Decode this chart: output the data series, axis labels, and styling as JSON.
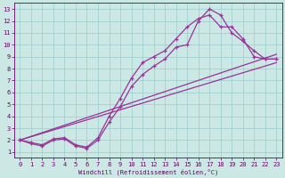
{
  "xlabel": "Windchill (Refroidissement éolien,°C)",
  "bg_color": "#cce8e4",
  "line_color": "#993399",
  "grid_color": "#99cccc",
  "xlim": [
    -0.5,
    23.5
  ],
  "ylim": [
    0.5,
    13.5
  ],
  "xticks": [
    0,
    1,
    2,
    3,
    4,
    5,
    6,
    7,
    8,
    9,
    10,
    11,
    12,
    13,
    14,
    15,
    16,
    17,
    18,
    19,
    20,
    21,
    22,
    23
  ],
  "yticks": [
    1,
    2,
    3,
    4,
    5,
    6,
    7,
    8,
    9,
    10,
    11,
    12,
    13
  ],
  "curve1_x": [
    0,
    1,
    2,
    3,
    4,
    5,
    6,
    7,
    8,
    9,
    10,
    11,
    12,
    13,
    14,
    15,
    16,
    17,
    18,
    19,
    20,
    21,
    22,
    23
  ],
  "curve1_y": [
    2,
    1.7,
    1.5,
    2.0,
    2.1,
    1.5,
    1.3,
    2.0,
    3.5,
    4.8,
    6.5,
    7.5,
    8.2,
    8.8,
    9.8,
    10.0,
    12.0,
    13.0,
    12.5,
    11.0,
    10.3,
    9.5,
    8.8,
    8.8
  ],
  "curve2_x": [
    0,
    1,
    2,
    3,
    4,
    5,
    6,
    7,
    8,
    9,
    10,
    11,
    12,
    13,
    14,
    15,
    16,
    17,
    18,
    19,
    20,
    21,
    22,
    23
  ],
  "curve2_y": [
    2,
    1.8,
    1.6,
    2.1,
    2.2,
    1.6,
    1.4,
    2.2,
    4.0,
    5.5,
    7.2,
    8.5,
    9.0,
    9.5,
    10.5,
    11.5,
    12.2,
    12.5,
    11.5,
    11.5,
    10.5,
    9.0,
    8.8,
    8.8
  ],
  "line1": [
    [
      0,
      23
    ],
    [
      2,
      8.5
    ]
  ],
  "line2": [
    [
      0,
      23
    ],
    [
      2,
      9.2
    ]
  ]
}
